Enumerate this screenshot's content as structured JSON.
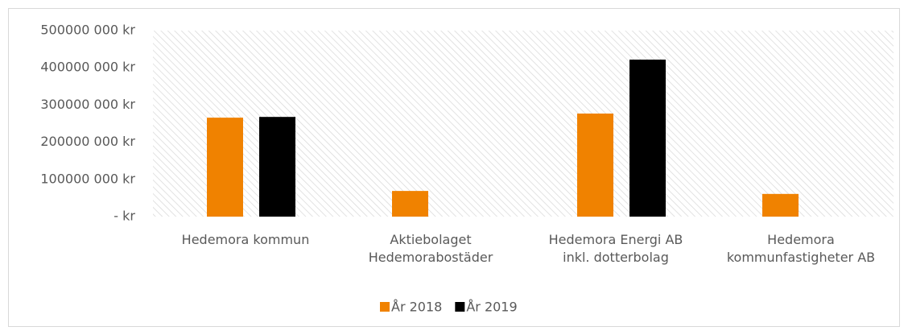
{
  "chart_data": {
    "type": "bar",
    "categories": [
      "Hedemora kommun",
      "Aktiebolaget\nHedemorabostäder",
      "Hedemora Energi AB\ninkl. dotterbolag",
      "Hedemora\nkommunfastigheter AB"
    ],
    "series": [
      {
        "name": "År 2018",
        "color": "#f08200",
        "values": [
          266000000,
          69000000,
          277000000,
          61000000
        ]
      },
      {
        "name": "År 2019",
        "color": "#000000",
        "values": [
          268000000,
          null,
          422000000,
          null
        ]
      }
    ],
    "ylim": [
      0,
      500000000
    ],
    "yticks": [
      {
        "value": 0,
        "label": "-  kr"
      },
      {
        "value": 100000000,
        "label": "100000 000 kr"
      },
      {
        "value": 200000000,
        "label": "200000 000 kr"
      },
      {
        "value": 300000000,
        "label": "300000 000 kr"
      },
      {
        "value": 400000000,
        "label": "400000 000 kr"
      },
      {
        "value": 500000000,
        "label": "500000 000 kr"
      }
    ],
    "legend": "bottom"
  }
}
